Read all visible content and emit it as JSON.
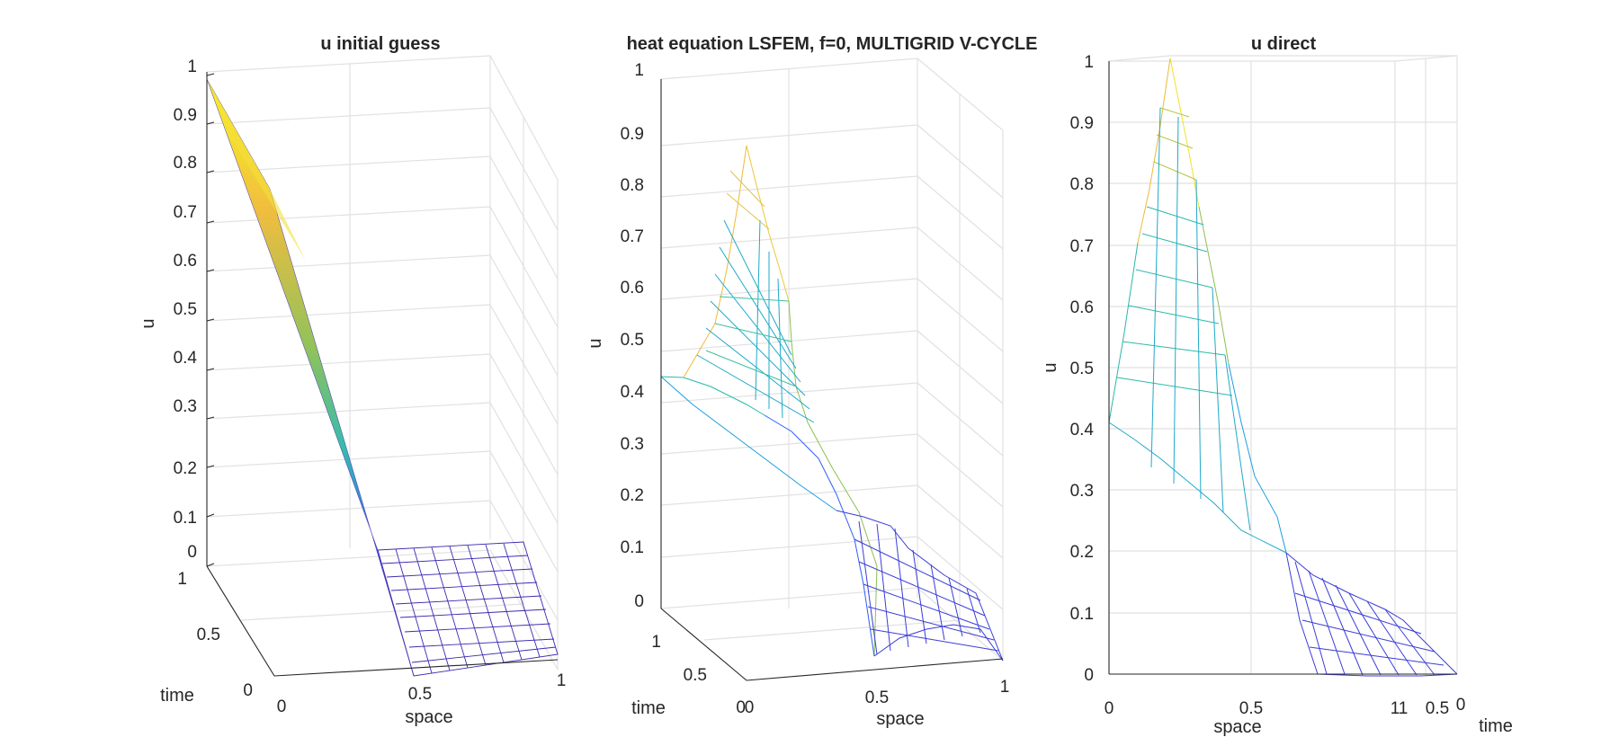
{
  "figure": {
    "background": "#ffffff",
    "colormap": [
      "#3e26a8",
      "#2e5df9",
      "#1b9ede",
      "#2ab9a8",
      "#8cbf52",
      "#f0ba35",
      "#fafa14"
    ]
  },
  "chart_data": [
    {
      "type": "surface",
      "title": "u initial guess",
      "xlabel": "space",
      "ylabel": "time",
      "zlabel": "u",
      "xlim": [
        0,
        1
      ],
      "ylim": [
        0,
        1
      ],
      "zlim": [
        0,
        1
      ],
      "x_ticks": [
        "0",
        "0.5",
        "1"
      ],
      "y_ticks": [
        "0",
        "0.5",
        "1"
      ],
      "z_ticks": [
        "0",
        "0.1",
        "0.2",
        "0.3",
        "0.4",
        "0.5",
        "0.6",
        "0.7",
        "0.8",
        "0.9",
        "1"
      ],
      "grid": true,
      "surface_description": "initial guess: u = 1 - 2x for x <= 0.5, u = 0 for x >= 0.5, constant in time",
      "profile": {
        "x": [
          0,
          0.125,
          0.25,
          0.375,
          0.5,
          0.625,
          0.75,
          0.875,
          1
        ],
        "u": [
          1,
          0.75,
          0.5,
          0.25,
          0,
          0,
          0,
          0,
          0
        ]
      }
    },
    {
      "type": "surface",
      "title": "heat equation LSFEM, f=0, MULTIGRID V-CYCLE",
      "xlabel": "space",
      "ylabel": "time",
      "zlabel": "u",
      "xlim": [
        0,
        1
      ],
      "ylim": [
        0,
        1
      ],
      "zlim": [
        0,
        1
      ],
      "x_ticks": [
        "0",
        "0.5",
        "1"
      ],
      "y_ticks": [
        "0",
        "0.5",
        "1"
      ],
      "z_ticks": [
        "0",
        "0.1",
        "0.2",
        "0.3",
        "0.4",
        "0.5",
        "0.6",
        "0.7",
        "0.8",
        "0.9",
        "1"
      ],
      "grid": true,
      "surface_description": "multigrid solution: sharp peak near 0.85 at x=0.25, t=0; diffuses toward about 0.42 at t=1",
      "profile_t0": {
        "x": [
          0,
          0.125,
          0.25,
          0.375,
          0.5,
          0.625,
          0.75,
          0.875,
          1
        ],
        "u": [
          0.42,
          0.45,
          0.86,
          0.55,
          0,
          0.1,
          0.06,
          0.02,
          0
        ]
      },
      "profile_t1": {
        "x": [
          0,
          0.125,
          0.25,
          0.375,
          0.5,
          0.625,
          0.75,
          0.875,
          1
        ],
        "u": [
          0.42,
          0.41,
          0.38,
          0.3,
          0.18,
          0.1,
          0.06,
          0.02,
          0
        ]
      }
    },
    {
      "type": "surface",
      "title": "u direct",
      "xlabel": "space",
      "ylabel": "time",
      "zlabel": "u",
      "xlim": [
        0,
        1
      ],
      "ylim": [
        0,
        1
      ],
      "zlim": [
        0,
        1
      ],
      "x_ticks": [
        "0",
        "0.5",
        "1"
      ],
      "y_ticks": [
        "1",
        "0.5",
        "0"
      ],
      "z_ticks": [
        "0",
        "0.1",
        "0.2",
        "0.3",
        "0.4",
        "0.5",
        "0.6",
        "0.7",
        "0.8",
        "0.9",
        "1"
      ],
      "grid": true,
      "surface_description": "direct solution: peak 1.0 at x=0.25, t=0; all time profiles cross near u=0.2 at x=0.6",
      "profile_t0": {
        "x": [
          0,
          0.125,
          0.25,
          0.375,
          0.5,
          0.625,
          0.75,
          0.875,
          1
        ],
        "u": [
          0.42,
          0.5,
          1.0,
          0.6,
          0.35,
          0.2,
          0,
          0,
          0
        ]
      },
      "profile_t1": {
        "x": [
          0,
          0.125,
          0.25,
          0.375,
          0.5,
          0.625,
          0.75,
          0.875,
          1
        ],
        "u": [
          0.42,
          0.4,
          0.35,
          0.3,
          0.25,
          0.2,
          0.12,
          0.1,
          0
        ]
      }
    }
  ]
}
